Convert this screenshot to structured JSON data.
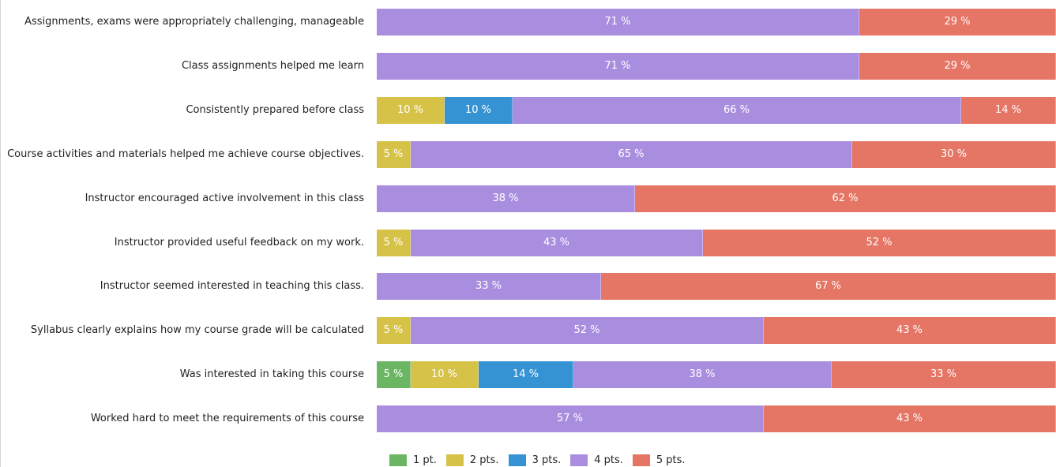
{
  "chart_data": {
    "type": "bar",
    "orientation": "horizontal",
    "stacked": true,
    "value_unit": "%",
    "categories": [
      "Assignments, exams were appropriately challenging, manageable",
      "Class assignments helped me learn",
      "Consistently prepared before class",
      "Course activities and materials helped me achieve course objectives.",
      "Instructor encouraged active involvement in this class",
      "Instructor provided useful feedback on my work.",
      "Instructor seemed interested in teaching this class.",
      "Syllabus clearly explains how my course grade will be calculated",
      "Was interested in taking this course",
      "Worked hard to meet the requirements of this course"
    ],
    "series": [
      {
        "name": "1 pt.",
        "color": "#6bb663",
        "values": [
          0,
          0,
          0,
          0,
          0,
          0,
          0,
          0,
          5,
          0
        ]
      },
      {
        "name": "2 pts.",
        "color": "#d7c248",
        "values": [
          0,
          0,
          10,
          5,
          0,
          5,
          0,
          5,
          10,
          0
        ]
      },
      {
        "name": "3 pts.",
        "color": "#3593d4",
        "values": [
          0,
          0,
          10,
          0,
          0,
          0,
          0,
          0,
          14,
          0
        ]
      },
      {
        "name": "4 pts.",
        "color": "#a98ee0",
        "values": [
          71,
          71,
          66,
          65,
          38,
          43,
          33,
          52,
          38,
          57
        ]
      },
      {
        "name": "5 pts.",
        "color": "#e57565",
        "values": [
          29,
          29,
          14,
          30,
          62,
          52,
          67,
          43,
          33,
          43
        ]
      }
    ],
    "xlim": [
      0,
      100
    ],
    "grid": false,
    "legend_position": "bottom"
  }
}
